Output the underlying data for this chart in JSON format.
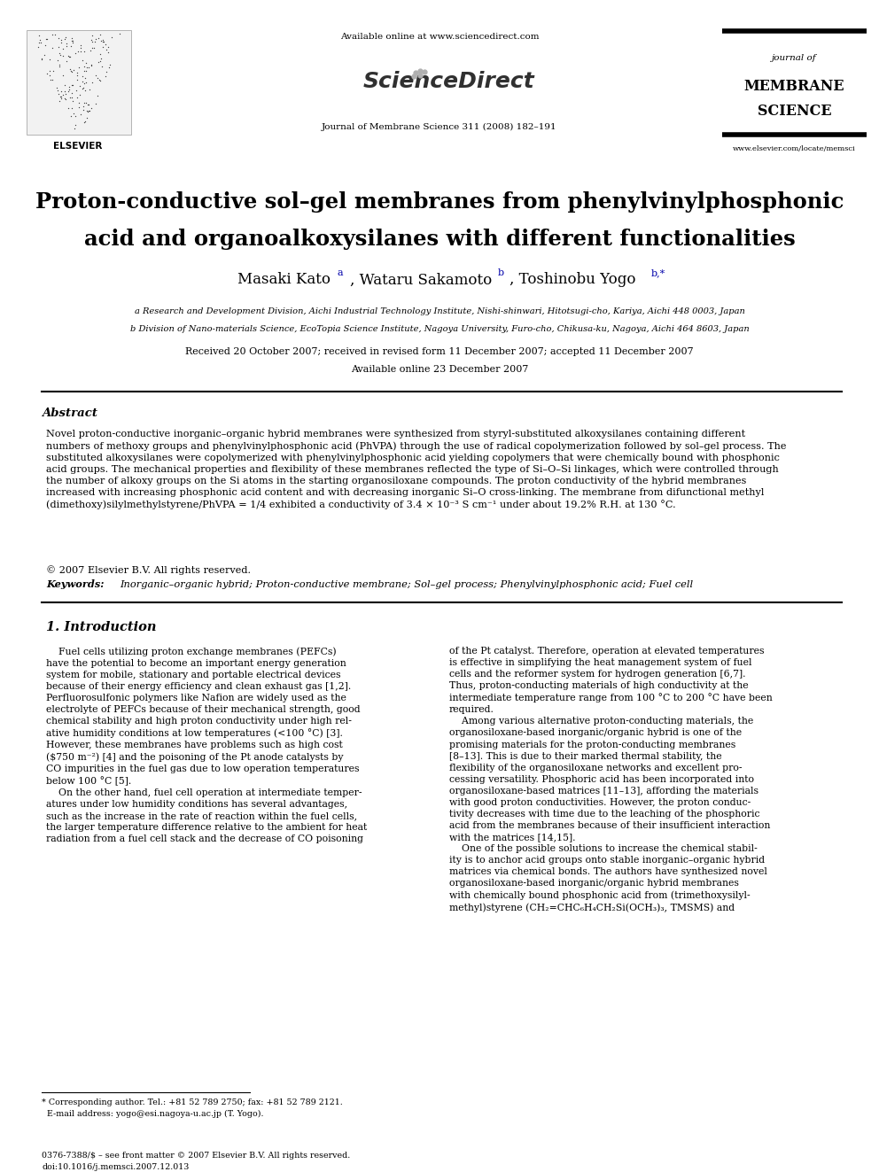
{
  "bg_color": "#ffffff",
  "page_width": 9.92,
  "page_height": 13.23,
  "header_available": "Available online at www.sciencedirect.com",
  "header_journal_ref": "Journal of Membrane Science 311 (2008) 182–191",
  "header_j1": "journal of",
  "header_j2": "MEMBRANE",
  "header_j3": "SCIENCE",
  "header_website": "www.elsevier.com/locate/memsci",
  "elsevier_text": "ELSEVIER",
  "title_line1": "Proton-conductive sol–gel membranes from phenylvinylphosphonic",
  "title_line2": "acid and organoalkoxysilanes with different functionalities",
  "author1_name": "Masaki Kato",
  "author1_sup": "a",
  "author2_name": "Wataru Sakamoto",
  "author2_sup": "b",
  "author3_name": "Toshinobu Yogo",
  "author3_sup": "b,*",
  "affil_a": "a Research and Development Division, Aichi Industrial Technology Institute, Nishi-shinwari, Hitotsugi-cho, Kariya, Aichi 448 0003, Japan",
  "affil_b": "b Division of Nano-materials Science, EcoTopia Science Institute, Nagoya University, Furo-cho, Chikusa-ku, Nagoya, Aichi 464 8603, Japan",
  "received_line": "Received 20 October 2007; received in revised form 11 December 2007; accepted 11 December 2007",
  "available_line": "Available online 23 December 2007",
  "abstract_head": "Abstract",
  "abstract_para": "Novel proton-conductive inorganic–organic hybrid membranes were synthesized from styryl-substituted alkoxysilanes containing different\nnumbers of methoxy groups and phenylvinylphosphonic acid (PhVPA) through the use of radical copolymerization followed by sol–gel process. The\nsubstituted alkoxysilanes were copolymerized with phenylvinylphosphonic acid yielding copolymers that were chemically bound with phosphonic\nacid groups. The mechanical properties and flexibility of these membranes reflected the type of Si–O–Si linkages, which were controlled through\nthe number of alkoxy groups on the Si atoms in the starting organosiloxane compounds. The proton conductivity of the hybrid membranes\nincreased with increasing phosphonic acid content and with decreasing inorganic Si–O cross-linking. The membrane from difunctional methyl\n(dimethoxy)silylmethylstyrene/PhVPA = 1/4 exhibited a conductivity of 3.4 × 10⁻³ S cm⁻¹ under about 19.2% R.H. at 130 °C.",
  "abstract_copy": "© 2007 Elsevier B.V. All rights reserved.",
  "keywords_label": "Keywords:",
  "keywords_body": "Inorganic–organic hybrid; Proton-conductive membrane; Sol–gel process; Phenylvinylphosphonic acid; Fuel cell",
  "sec1_head": "1. Introduction",
  "sec1_col1": "    Fuel cells utilizing proton exchange membranes (PEFCs)\nhave the potential to become an important energy generation\nsystem for mobile, stationary and portable electrical devices\nbecause of their energy efficiency and clean exhaust gas [1,2].\nPerfluorosulfonic polymers like Nafion are widely used as the\nelectrolyte of PEFCs because of their mechanical strength, good\nchemical stability and high proton conductivity under high rel-\native humidity conditions at low temperatures (<100 °C) [3].\nHowever, these membranes have problems such as high cost\n($750 m⁻²) [4] and the poisoning of the Pt anode catalysts by\nCO impurities in the fuel gas due to low operation temperatures\nbelow 100 °C [5].\n    On the other hand, fuel cell operation at intermediate temper-\natures under low humidity conditions has several advantages,\nsuch as the increase in the rate of reaction within the fuel cells,\nthe larger temperature difference relative to the ambient for heat\nradiation from a fuel cell stack and the decrease of CO poisoning",
  "sec1_col2": "of the Pt catalyst. Therefore, operation at elevated temperatures\nis effective in simplifying the heat management system of fuel\ncells and the reformer system for hydrogen generation [6,7].\nThus, proton-conducting materials of high conductivity at the\nintermediate temperature range from 100 °C to 200 °C have been\nrequired.\n    Among various alternative proton-conducting materials, the\norganosiloxane-based inorganic/organic hybrid is one of the\npromising materials for the proton-conducting membranes\n[8–13]. This is due to their marked thermal stability, the\nflexibility of the organosiloxane networks and excellent pro-\ncessing versatility. Phosphoric acid has been incorporated into\norganosiloxane-based matrices [11–13], affording the materials\nwith good proton conductivities. However, the proton conduc-\ntivity decreases with time due to the leaching of the phosphoric\nacid from the membranes because of their insufficient interaction\nwith the matrices [14,15].\n    One of the possible solutions to increase the chemical stabil-\nity is to anchor acid groups onto stable inorganic–organic hybrid\nmatrices via chemical bonds. The authors have synthesized novel\norganosiloxane-based inorganic/organic hybrid membranes\nwith chemically bound phosphonic acid from (trimethoxysilyl-\nmethyl)styrene (CH₂=CHC₆H₄CH₂Si(OCH₃)₃, TMSMS) and",
  "footnote": "* Corresponding author. Tel.: +81 52 789 2750; fax: +81 52 789 2121.\n  E-mail address: yogo@esi.nagoya-u.ac.jp (T. Yogo).",
  "footer": "0376-7388/$ – see front matter © 2007 Elsevier B.V. All rights reserved.\ndoi:10.1016/j.memsci.2007.12.013"
}
